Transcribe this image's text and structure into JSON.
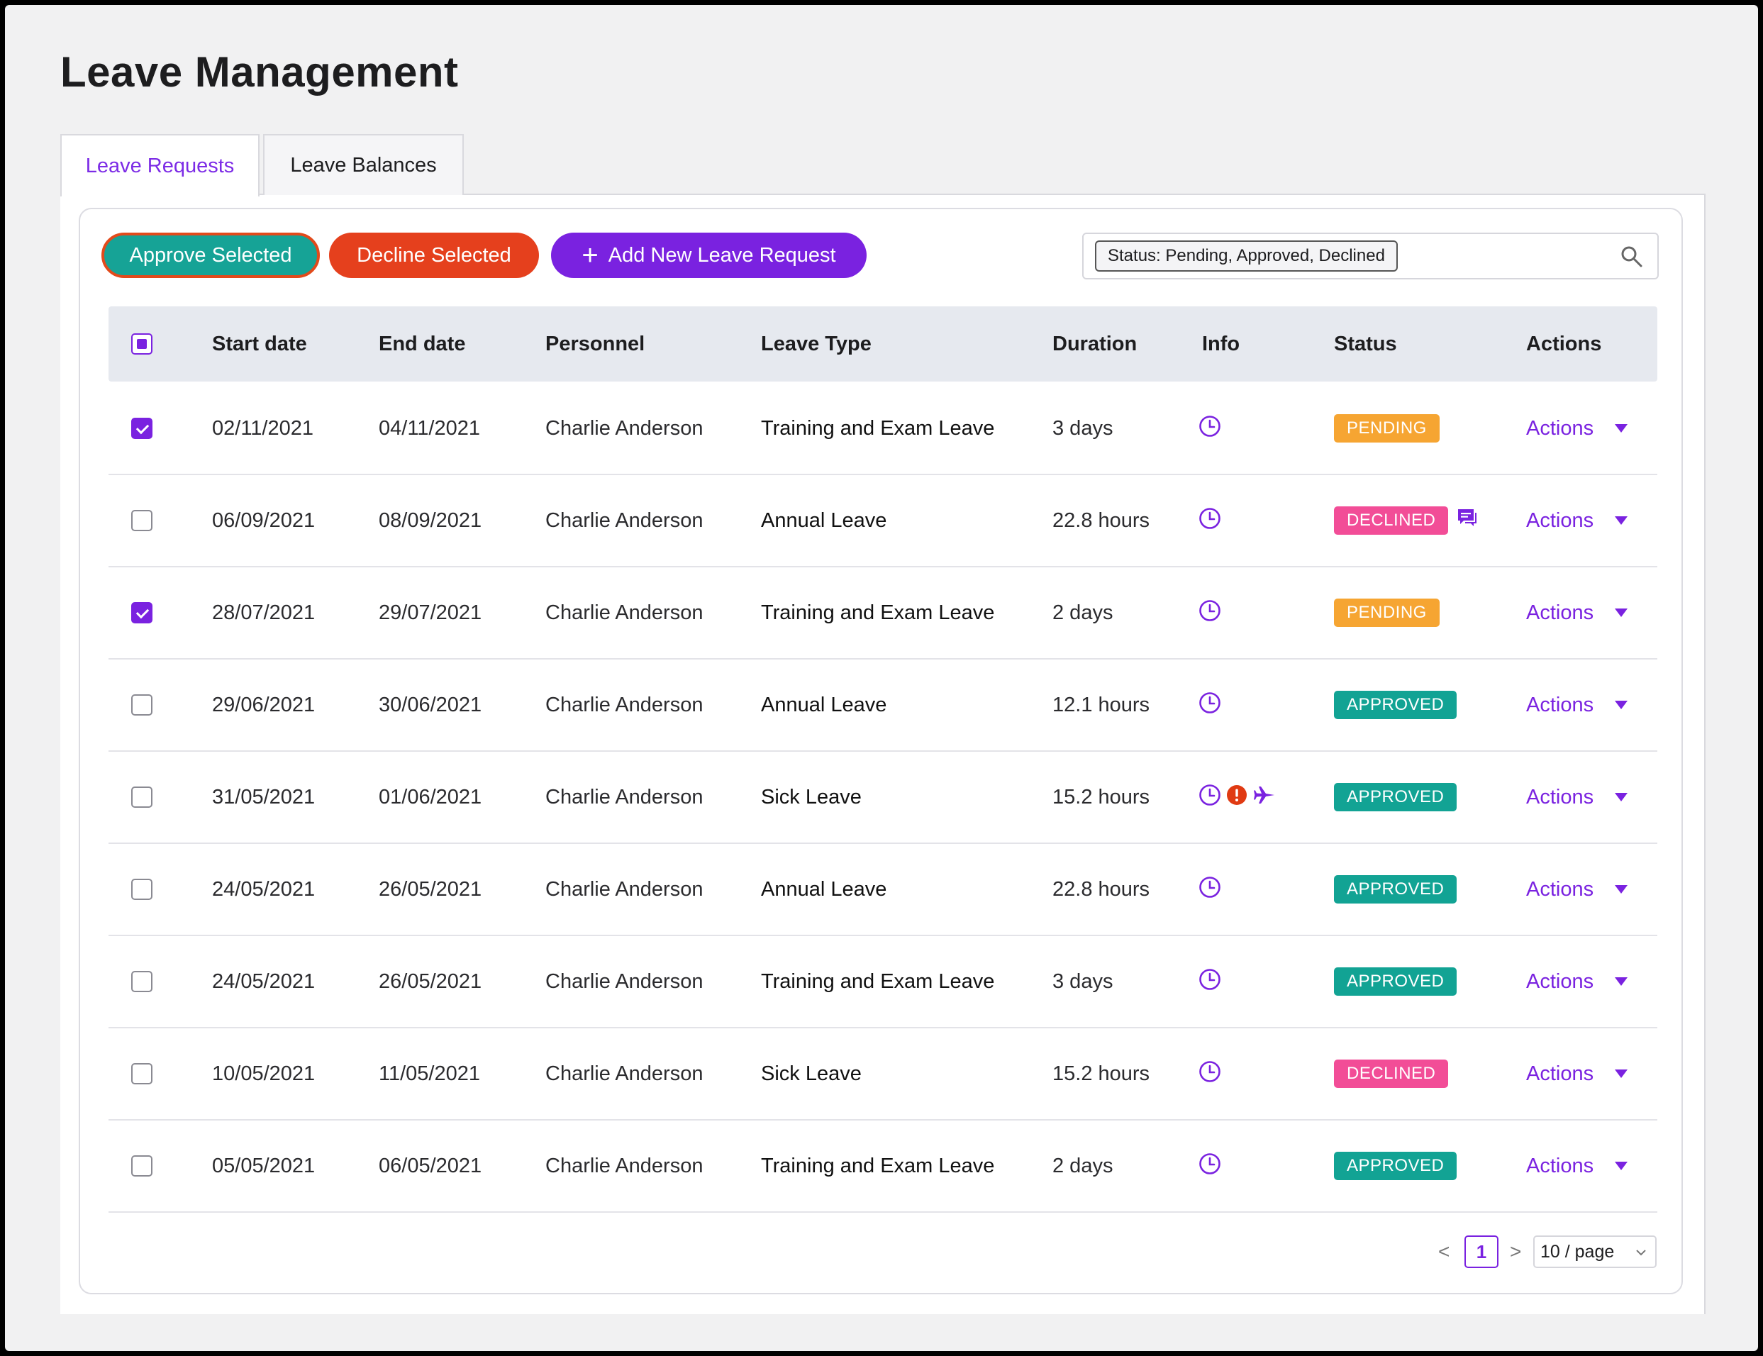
{
  "page": {
    "title": "Leave Management"
  },
  "tabs": [
    {
      "label": "Leave Requests",
      "active": true
    },
    {
      "label": "Leave Balances",
      "active": false
    }
  ],
  "toolbar": {
    "approve_label": "Approve Selected",
    "decline_label": "Decline Selected",
    "add_label": "Add New Leave Request",
    "filter_tag": "Status: Pending, Approved, Declined"
  },
  "table": {
    "headers": [
      "Start date",
      "End date",
      "Personnel",
      "Leave Type",
      "Duration",
      "Info",
      "Status",
      "Actions"
    ],
    "select_all": "indeterminate",
    "rows": [
      {
        "checked": true,
        "start": "02/11/2021",
        "end": "04/11/2021",
        "personnel": "Charlie Anderson",
        "type": "Training and Exam Leave",
        "duration": "3 days",
        "info": [
          "clock-icon"
        ],
        "status": "PENDING",
        "comment": false,
        "actions": "Actions"
      },
      {
        "checked": false,
        "start": "06/09/2021",
        "end": "08/09/2021",
        "personnel": "Charlie Anderson",
        "type": "Annual Leave",
        "duration": "22.8 hours",
        "info": [
          "clock-icon"
        ],
        "status": "DECLINED",
        "comment": true,
        "actions": "Actions"
      },
      {
        "checked": true,
        "start": "28/07/2021",
        "end": "29/07/2021",
        "personnel": "Charlie Anderson",
        "type": "Training and Exam Leave",
        "duration": "2 days",
        "info": [
          "clock-icon"
        ],
        "status": "PENDING",
        "comment": false,
        "actions": "Actions"
      },
      {
        "checked": false,
        "start": "29/06/2021",
        "end": "30/06/2021",
        "personnel": "Charlie Anderson",
        "type": "Annual Leave",
        "duration": "12.1 hours",
        "info": [
          "clock-icon"
        ],
        "status": "APPROVED",
        "comment": false,
        "actions": "Actions"
      },
      {
        "checked": false,
        "start": "31/05/2021",
        "end": "01/06/2021",
        "personnel": "Charlie Anderson",
        "type": "Sick Leave",
        "duration": "15.2 hours",
        "info": [
          "clock-icon",
          "alert-icon",
          "plane-icon"
        ],
        "status": "APPROVED",
        "comment": false,
        "actions": "Actions"
      },
      {
        "checked": false,
        "start": "24/05/2021",
        "end": "26/05/2021",
        "personnel": "Charlie Anderson",
        "type": "Annual Leave",
        "duration": "22.8 hours",
        "info": [
          "clock-icon"
        ],
        "status": "APPROVED",
        "comment": false,
        "actions": "Actions"
      },
      {
        "checked": false,
        "start": "24/05/2021",
        "end": "26/05/2021",
        "personnel": "Charlie Anderson",
        "type": "Training and Exam Leave",
        "duration": "3 days",
        "info": [
          "clock-icon"
        ],
        "status": "APPROVED",
        "comment": false,
        "actions": "Actions"
      },
      {
        "checked": false,
        "start": "10/05/2021",
        "end": "11/05/2021",
        "personnel": "Charlie Anderson",
        "type": "Sick Leave",
        "duration": "15.2 hours",
        "info": [
          "clock-icon"
        ],
        "status": "DECLINED",
        "comment": false,
        "actions": "Actions"
      },
      {
        "checked": false,
        "start": "05/05/2021",
        "end": "06/05/2021",
        "personnel": "Charlie Anderson",
        "type": "Training and Exam Leave",
        "duration": "2 days",
        "info": [
          "clock-icon"
        ],
        "status": "APPROVED",
        "comment": false,
        "actions": "Actions"
      }
    ]
  },
  "pagination": {
    "prev": "<",
    "current": "1",
    "next": ">",
    "page_size": "10 / page"
  },
  "colors": {
    "accent": "#7a22e0",
    "approve": "#16a396",
    "decline": "#e5401d",
    "pending": "#f6a532",
    "declined": "#f24d97",
    "approved": "#12a394",
    "alert": "#e03a12"
  }
}
